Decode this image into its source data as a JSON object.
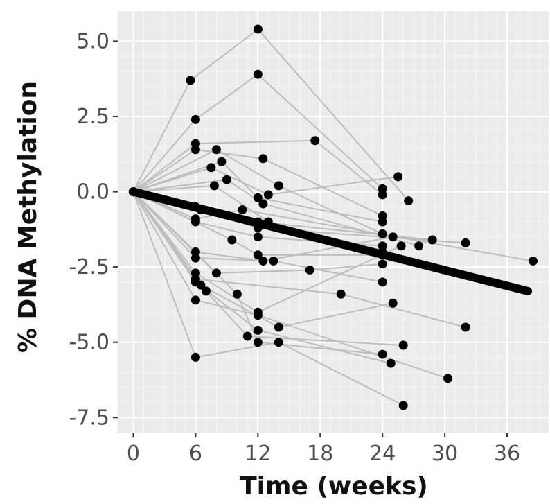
{
  "chart_data": {
    "type": "line",
    "title": "",
    "xlabel": "Time (weeks)",
    "ylabel": "% DNA Methylation",
    "xlim": [
      -1.5,
      40
    ],
    "ylim": [
      -8.0,
      6.0
    ],
    "xticks": [
      0,
      6,
      12,
      18,
      24,
      30,
      36
    ],
    "yticks": [
      5.0,
      2.5,
      0.0,
      -2.5,
      -5.0,
      -7.5
    ],
    "xtick_labels": [
      "0",
      "6",
      "12",
      "18",
      "24",
      "30",
      "36"
    ],
    "ytick_labels": [
      "5.0",
      "2.5",
      "0.0",
      "-2.5",
      "-5.0",
      "-7.5"
    ],
    "grid": true,
    "legend": "none",
    "colors": {
      "panel": "#ebebeb",
      "grid": "#ffffff",
      "subject_line": "#bdbdbd",
      "point": "#000000",
      "trend": "#000000"
    },
    "trend": {
      "x": [
        0,
        38
      ],
      "y": [
        0.0,
        -3.3
      ]
    },
    "subjects": [
      {
        "x": [
          0,
          5.5,
          12,
          26.5
        ],
        "y": [
          0,
          3.7,
          5.4,
          -0.3
        ]
      },
      {
        "x": [
          0,
          6,
          12,
          24
        ],
        "y": [
          0,
          2.4,
          3.9,
          0.1
        ]
      },
      {
        "x": [
          0,
          6,
          17.5,
          24
        ],
        "y": [
          0,
          1.6,
          1.7,
          -0.1
        ]
      },
      {
        "x": [
          0,
          6,
          12.5,
          24
        ],
        "y": [
          0,
          1.4,
          1.1,
          -0.8
        ]
      },
      {
        "x": [
          0,
          8,
          14,
          24
        ],
        "y": [
          0,
          1.4,
          0.2,
          -1.4
        ]
      },
      {
        "x": [
          0,
          8.5,
          12,
          24
        ],
        "y": [
          0,
          1.0,
          -0.2,
          -1.0
        ]
      },
      {
        "x": [
          0,
          7.5,
          13,
          25.5
        ],
        "y": [
          0,
          0.8,
          -0.1,
          0.5
        ]
      },
      {
        "x": [
          0,
          9,
          12.5,
          27.5
        ],
        "y": [
          0,
          0.4,
          -0.4,
          -1.8
        ]
      },
      {
        "x": [
          0,
          7.8,
          13,
          24
        ],
        "y": [
          0,
          0.2,
          -1.0,
          -2.0
        ]
      },
      {
        "x": [
          0,
          6,
          12,
          28.8
        ],
        "y": [
          0,
          -0.5,
          -1.0,
          -1.6
        ]
      },
      {
        "x": [
          0,
          6.5,
          12,
          32
        ],
        "y": [
          0,
          -0.6,
          -1.2,
          -1.7
        ]
      },
      {
        "x": [
          0,
          6,
          10.5,
          38.5
        ],
        "y": [
          0,
          -0.9,
          -0.6,
          -2.3
        ]
      },
      {
        "x": [
          0,
          6,
          12,
          24
        ],
        "y": [
          0,
          -1.0,
          -1.5,
          -1.8
        ]
      },
      {
        "x": [
          0,
          9.5,
          12,
          24
        ],
        "y": [
          0,
          -1.6,
          -2.1,
          -2.1
        ]
      },
      {
        "x": [
          0,
          6,
          12.5,
          25
        ],
        "y": [
          0,
          -2.0,
          -2.3,
          -1.5
        ]
      },
      {
        "x": [
          0,
          6,
          13.5,
          24
        ],
        "y": [
          0,
          -2.2,
          -2.3,
          -3.0
        ]
      },
      {
        "x": [
          0,
          6,
          12,
          25.8
        ],
        "y": [
          0,
          -2.7,
          -4.0,
          -1.8
        ]
      },
      {
        "x": [
          0,
          8,
          17,
          24
        ],
        "y": [
          0,
          -2.7,
          -2.6,
          -2.4
        ]
      },
      {
        "x": [
          0,
          6,
          20,
          32
        ],
        "y": [
          0,
          -2.9,
          -3.4,
          -4.5
        ]
      },
      {
        "x": [
          0,
          6.5,
          14,
          25
        ],
        "y": [
          0,
          -3.1,
          -4.5,
          -3.7
        ]
      },
      {
        "x": [
          0,
          7,
          11,
          26
        ],
        "y": [
          0,
          -3.3,
          -4.8,
          -5.1
        ]
      },
      {
        "x": [
          0,
          10,
          12,
          24
        ],
        "y": [
          0,
          -3.4,
          -5.0,
          -5.4
        ]
      },
      {
        "x": [
          0,
          6,
          12,
          30.3
        ],
        "y": [
          0,
          -3.6,
          -4.1,
          -6.2
        ]
      },
      {
        "x": [
          0,
          6,
          14,
          26
        ],
        "y": [
          0,
          -5.5,
          -5.0,
          -7.1
        ]
      },
      {
        "x": [
          0,
          6,
          12,
          24.8
        ],
        "y": [
          0,
          -3.0,
          -4.6,
          -5.7
        ]
      }
    ]
  }
}
